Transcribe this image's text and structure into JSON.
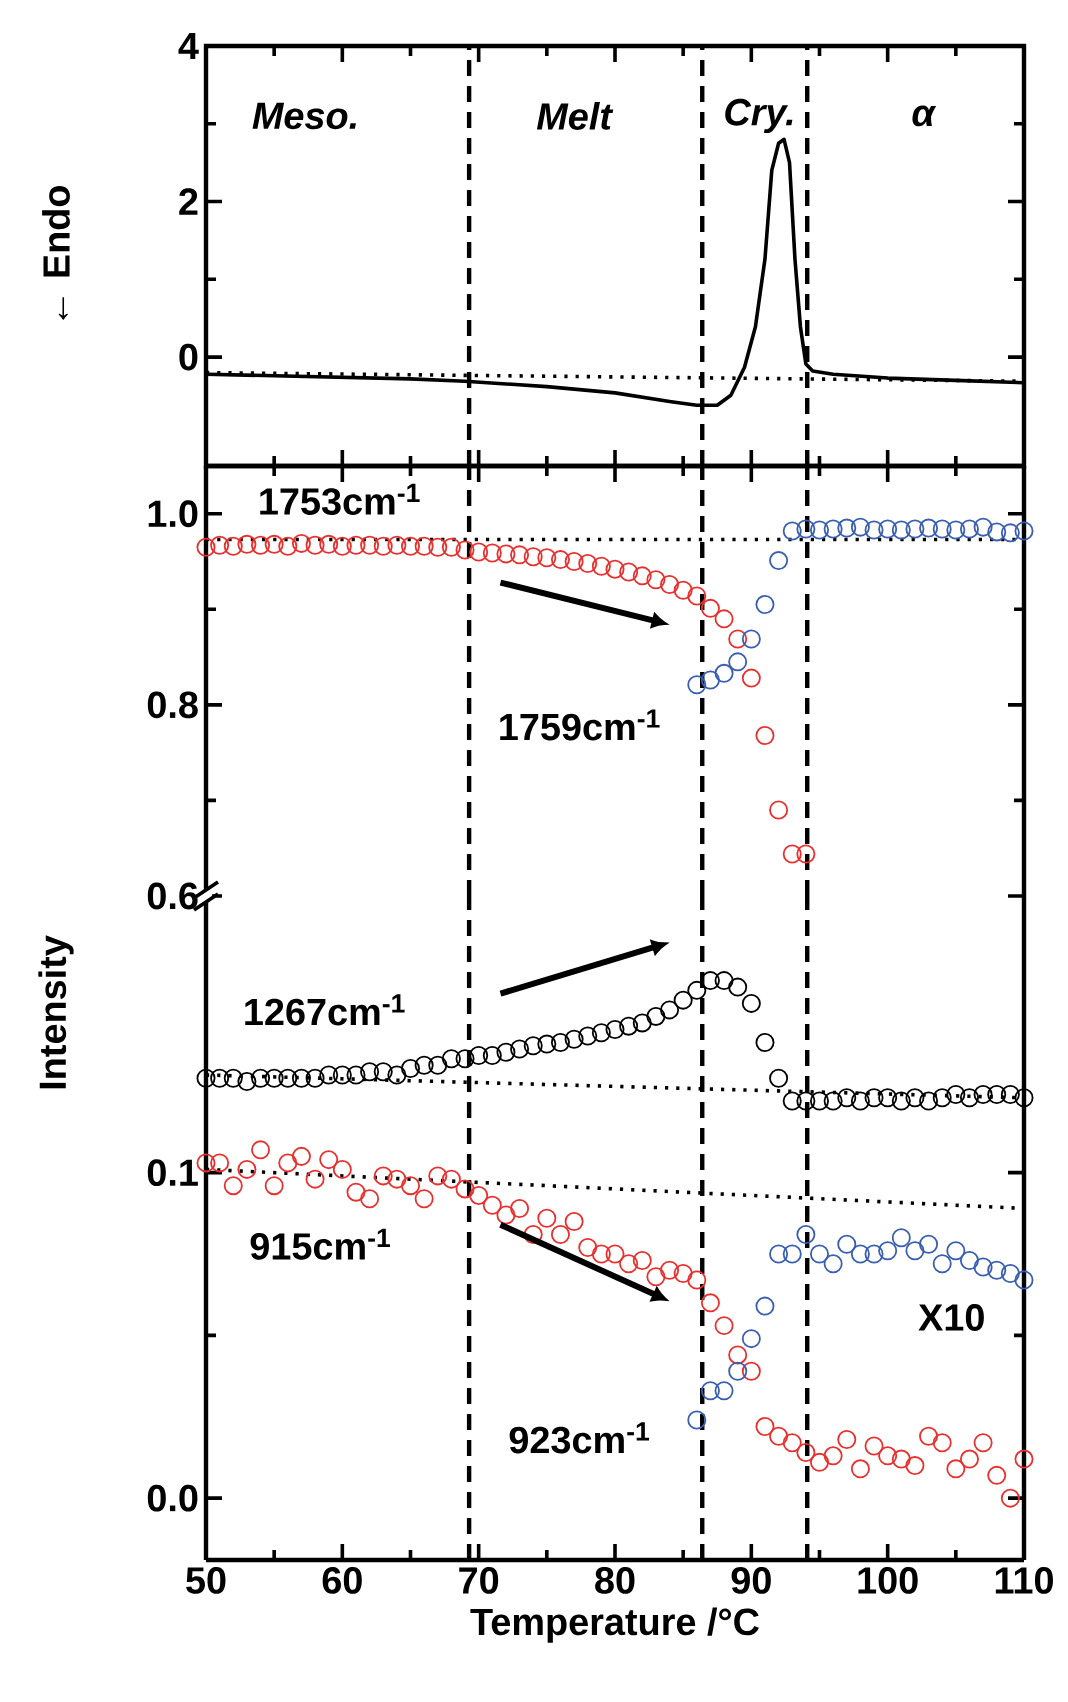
{
  "chart_data": [
    {
      "type": "line",
      "ylabel": "← Endo",
      "xlim": [
        50,
        110
      ],
      "xticks": [
        50,
        60,
        70,
        80,
        90,
        100,
        110
      ],
      "ylim": [
        -1.4,
        4
      ],
      "yticks": [
        0,
        2,
        4
      ],
      "tick_labels": "y",
      "ref_lines": [
        {
          "axis": "x",
          "value": 69.3,
          "line_style": "dashed"
        },
        {
          "axis": "x",
          "value": 86.4,
          "line_style": "dashed"
        },
        {
          "axis": "x",
          "value": 94.1,
          "line_style": "dashed"
        }
      ],
      "annotations": [
        "Meso.",
        "Melt",
        "Cry.",
        "α"
      ],
      "series": [
        {
          "line_style": "solid",
          "color": "#000000",
          "x": [
            50,
            55,
            60,
            65,
            69,
            75,
            80,
            84,
            86,
            87.5,
            88.5,
            89.5,
            90.3,
            91,
            91.5,
            92,
            92.4,
            92.8,
            93.2,
            93.6,
            94,
            94.5,
            96,
            100,
            105,
            110
          ],
          "values": [
            -0.22,
            -0.24,
            -0.26,
            -0.28,
            -0.31,
            -0.38,
            -0.46,
            -0.57,
            -0.62,
            -0.62,
            -0.49,
            -0.13,
            0.39,
            1.26,
            2.4,
            2.75,
            2.8,
            2.5,
            1.26,
            0.39,
            -0.09,
            -0.18,
            -0.22,
            -0.27,
            -0.3,
            -0.33
          ]
        },
        {
          "line_style": "dotted",
          "color": "#000000",
          "x": [
            50,
            110
          ],
          "values": [
            -0.2,
            -0.31
          ]
        }
      ]
    },
    {
      "type": "scatter",
      "xlim": [
        50,
        110
      ],
      "xticks": [
        50,
        60,
        70,
        80,
        90,
        100,
        110
      ],
      "ylim": [
        0.6,
        1.05
      ],
      "yticks": [
        0.6,
        0.8,
        {
          "value": 1,
          "label": "1.0"
        }
      ],
      "tick_labels": "y",
      "ref_lines": [
        {
          "axis": "x",
          "value": 69.3,
          "line_style": "dashed"
        },
        {
          "axis": "x",
          "value": 86.4,
          "line_style": "dashed"
        },
        {
          "axis": "x",
          "value": 94.1,
          "line_style": "dashed"
        }
      ],
      "series": [
        {
          "name": "1753cm$^{-1}$",
          "marker": "circle",
          "color": "#e8312f",
          "x": [
            50,
            51,
            52,
            53,
            54,
            55,
            56,
            57,
            58,
            59,
            60,
            61,
            62,
            63,
            64,
            65,
            66,
            67,
            68,
            69,
            70,
            71,
            72,
            73,
            74,
            75,
            76,
            77,
            78,
            79,
            80,
            81,
            82,
            83,
            84,
            85,
            86,
            87,
            88,
            89,
            90,
            91,
            92,
            93,
            94
          ],
          "values": [
            0.965,
            0.967,
            0.966,
            0.968,
            0.967,
            0.968,
            0.966,
            0.969,
            0.967,
            0.968,
            0.966,
            0.967,
            0.967,
            0.966,
            0.967,
            0.966,
            0.966,
            0.965,
            0.965,
            0.962,
            0.96,
            0.959,
            0.958,
            0.957,
            0.955,
            0.954,
            0.952,
            0.95,
            0.948,
            0.945,
            0.942,
            0.939,
            0.935,
            0.931,
            0.926,
            0.92,
            0.914,
            0.901,
            0.89,
            0.869,
            0.828,
            0.768,
            0.69,
            0.644,
            0.644
          ]
        },
        {
          "name": "1759cm$^{-1}$",
          "marker": "circle",
          "color": "#3a5fb0",
          "x": [
            86,
            87,
            88,
            89,
            90,
            91,
            92,
            93,
            94,
            95,
            96,
            97,
            98,
            99,
            100,
            101,
            102,
            103,
            104,
            105,
            106,
            107,
            108,
            109,
            110
          ],
          "values": [
            0.821,
            0.826,
            0.833,
            0.845,
            0.869,
            0.905,
            0.951,
            0.982,
            0.984,
            0.983,
            0.984,
            0.985,
            0.986,
            0.983,
            0.984,
            0.983,
            0.984,
            0.985,
            0.984,
            0.983,
            0.984,
            0.986,
            0.981,
            0.98,
            0.982
          ]
        },
        {
          "type": "line",
          "line_style": "dotted",
          "color": "#000000",
          "x": [
            50,
            110
          ],
          "values": [
            0.973,
            0.973
          ]
        }
      ]
    },
    {
      "type": "scatter",
      "xlabel": "Temperature /°C",
      "ylabel": "Intensity",
      "xlim": [
        50,
        110
      ],
      "xticks": [
        50,
        60,
        70,
        80,
        90,
        100,
        110
      ],
      "ylim": [
        -0.019,
        0.185
      ],
      "yticks": [
        {
          "value": 0,
          "label": "0.0"
        },
        0.1
      ],
      "ref_lines": [
        {
          "axis": "x",
          "value": 69.3,
          "line_style": "dashed"
        },
        {
          "axis": "x",
          "value": 86.4,
          "line_style": "dashed"
        },
        {
          "axis": "x",
          "value": 94.1,
          "line_style": "dashed"
        }
      ],
      "annotations": [
        "X10"
      ],
      "series": [
        {
          "name": "1267cm$^{-1}$",
          "marker": "circle",
          "color": "#000000",
          "x": [
            50,
            51,
            52,
            53,
            54,
            55,
            56,
            57,
            58,
            59,
            60,
            61,
            62,
            63,
            64,
            65,
            66,
            67,
            68,
            69,
            70,
            71,
            72,
            73,
            74,
            75,
            76,
            77,
            78,
            79,
            80,
            81,
            82,
            83,
            84,
            85,
            86,
            87,
            88,
            89,
            90,
            91,
            92,
            93,
            94,
            95,
            96,
            97,
            98,
            99,
            100,
            101,
            102,
            103,
            104,
            105,
            106,
            107,
            108,
            109,
            110
          ],
          "values": [
            0.129,
            0.129,
            0.129,
            0.128,
            0.129,
            0.129,
            0.129,
            0.129,
            0.129,
            0.13,
            0.13,
            0.13,
            0.131,
            0.131,
            0.13,
            0.132,
            0.133,
            0.133,
            0.135,
            0.135,
            0.136,
            0.136,
            0.137,
            0.138,
            0.139,
            0.1395,
            0.14,
            0.141,
            0.142,
            0.143,
            0.144,
            0.145,
            0.146,
            0.148,
            0.15,
            0.153,
            0.156,
            0.159,
            0.159,
            0.157,
            0.152,
            0.14,
            0.129,
            0.122,
            0.122,
            0.122,
            0.122,
            0.123,
            0.122,
            0.123,
            0.123,
            0.122,
            0.123,
            0.122,
            0.123,
            0.124,
            0.123,
            0.124,
            0.124,
            0.124,
            0.123
          ]
        },
        {
          "name": "915cm$^{-1}$",
          "marker": "circle",
          "color": "#e8312f",
          "x": [
            50,
            51,
            52,
            53,
            54,
            55,
            56,
            57,
            58,
            59,
            60,
            61,
            62,
            63,
            64,
            65,
            66,
            67,
            68,
            69,
            70,
            71,
            72,
            73,
            74,
            75,
            76,
            77,
            78,
            79,
            80,
            81,
            82,
            83,
            84,
            85,
            86,
            87,
            88,
            89,
            90,
            91,
            92,
            93,
            94,
            95,
            96,
            97,
            98,
            99,
            100,
            101,
            102,
            103,
            104,
            105,
            106,
            107,
            108,
            109,
            110
          ],
          "values": [
            0.103,
            0.103,
            0.096,
            0.101,
            0.107,
            0.096,
            0.103,
            0.105,
            0.098,
            0.104,
            0.101,
            0.094,
            0.092,
            0.099,
            0.098,
            0.096,
            0.092,
            0.099,
            0.098,
            0.095,
            0.093,
            0.09,
            0.087,
            0.089,
            0.081,
            0.086,
            0.081,
            0.085,
            0.077,
            0.075,
            0.075,
            0.072,
            0.073,
            0.068,
            0.07,
            0.069,
            0.067,
            0.06,
            0.053,
            0.044,
            0.039,
            0.022,
            0.019,
            0.017,
            0.014,
            0.011,
            0.013,
            0.018,
            0.009,
            0.016,
            0.013,
            0.012,
            0.01,
            0.019,
            0.017,
            0.009,
            0.012,
            0.017,
            0.007,
            0.0,
            0.012
          ]
        },
        {
          "name": "923cm$^{-1}$",
          "marker": "circle",
          "color": "#3a5fb0",
          "x": [
            86,
            87,
            88,
            89,
            90,
            91,
            92,
            93,
            94,
            95,
            96,
            97,
            98,
            99,
            100,
            101,
            102,
            103,
            104,
            105,
            106,
            107,
            108,
            109,
            110
          ],
          "values": [
            0.024,
            0.033,
            0.033,
            0.039,
            0.049,
            0.059,
            0.075,
            0.075,
            0.081,
            0.075,
            0.072,
            0.078,
            0.075,
            0.075,
            0.076,
            0.08,
            0.076,
            0.078,
            0.072,
            0.076,
            0.073,
            0.071,
            0.07,
            0.069,
            0.067
          ]
        },
        {
          "type": "line",
          "line_style": "dotted",
          "color": "#000000",
          "x": [
            50,
            110
          ],
          "values": [
            0.13,
            0.123
          ]
        },
        {
          "type": "line",
          "line_style": "dotted",
          "color": "#000000",
          "x": [
            50,
            110
          ],
          "values": [
            0.101,
            0.089
          ]
        }
      ]
    }
  ]
}
